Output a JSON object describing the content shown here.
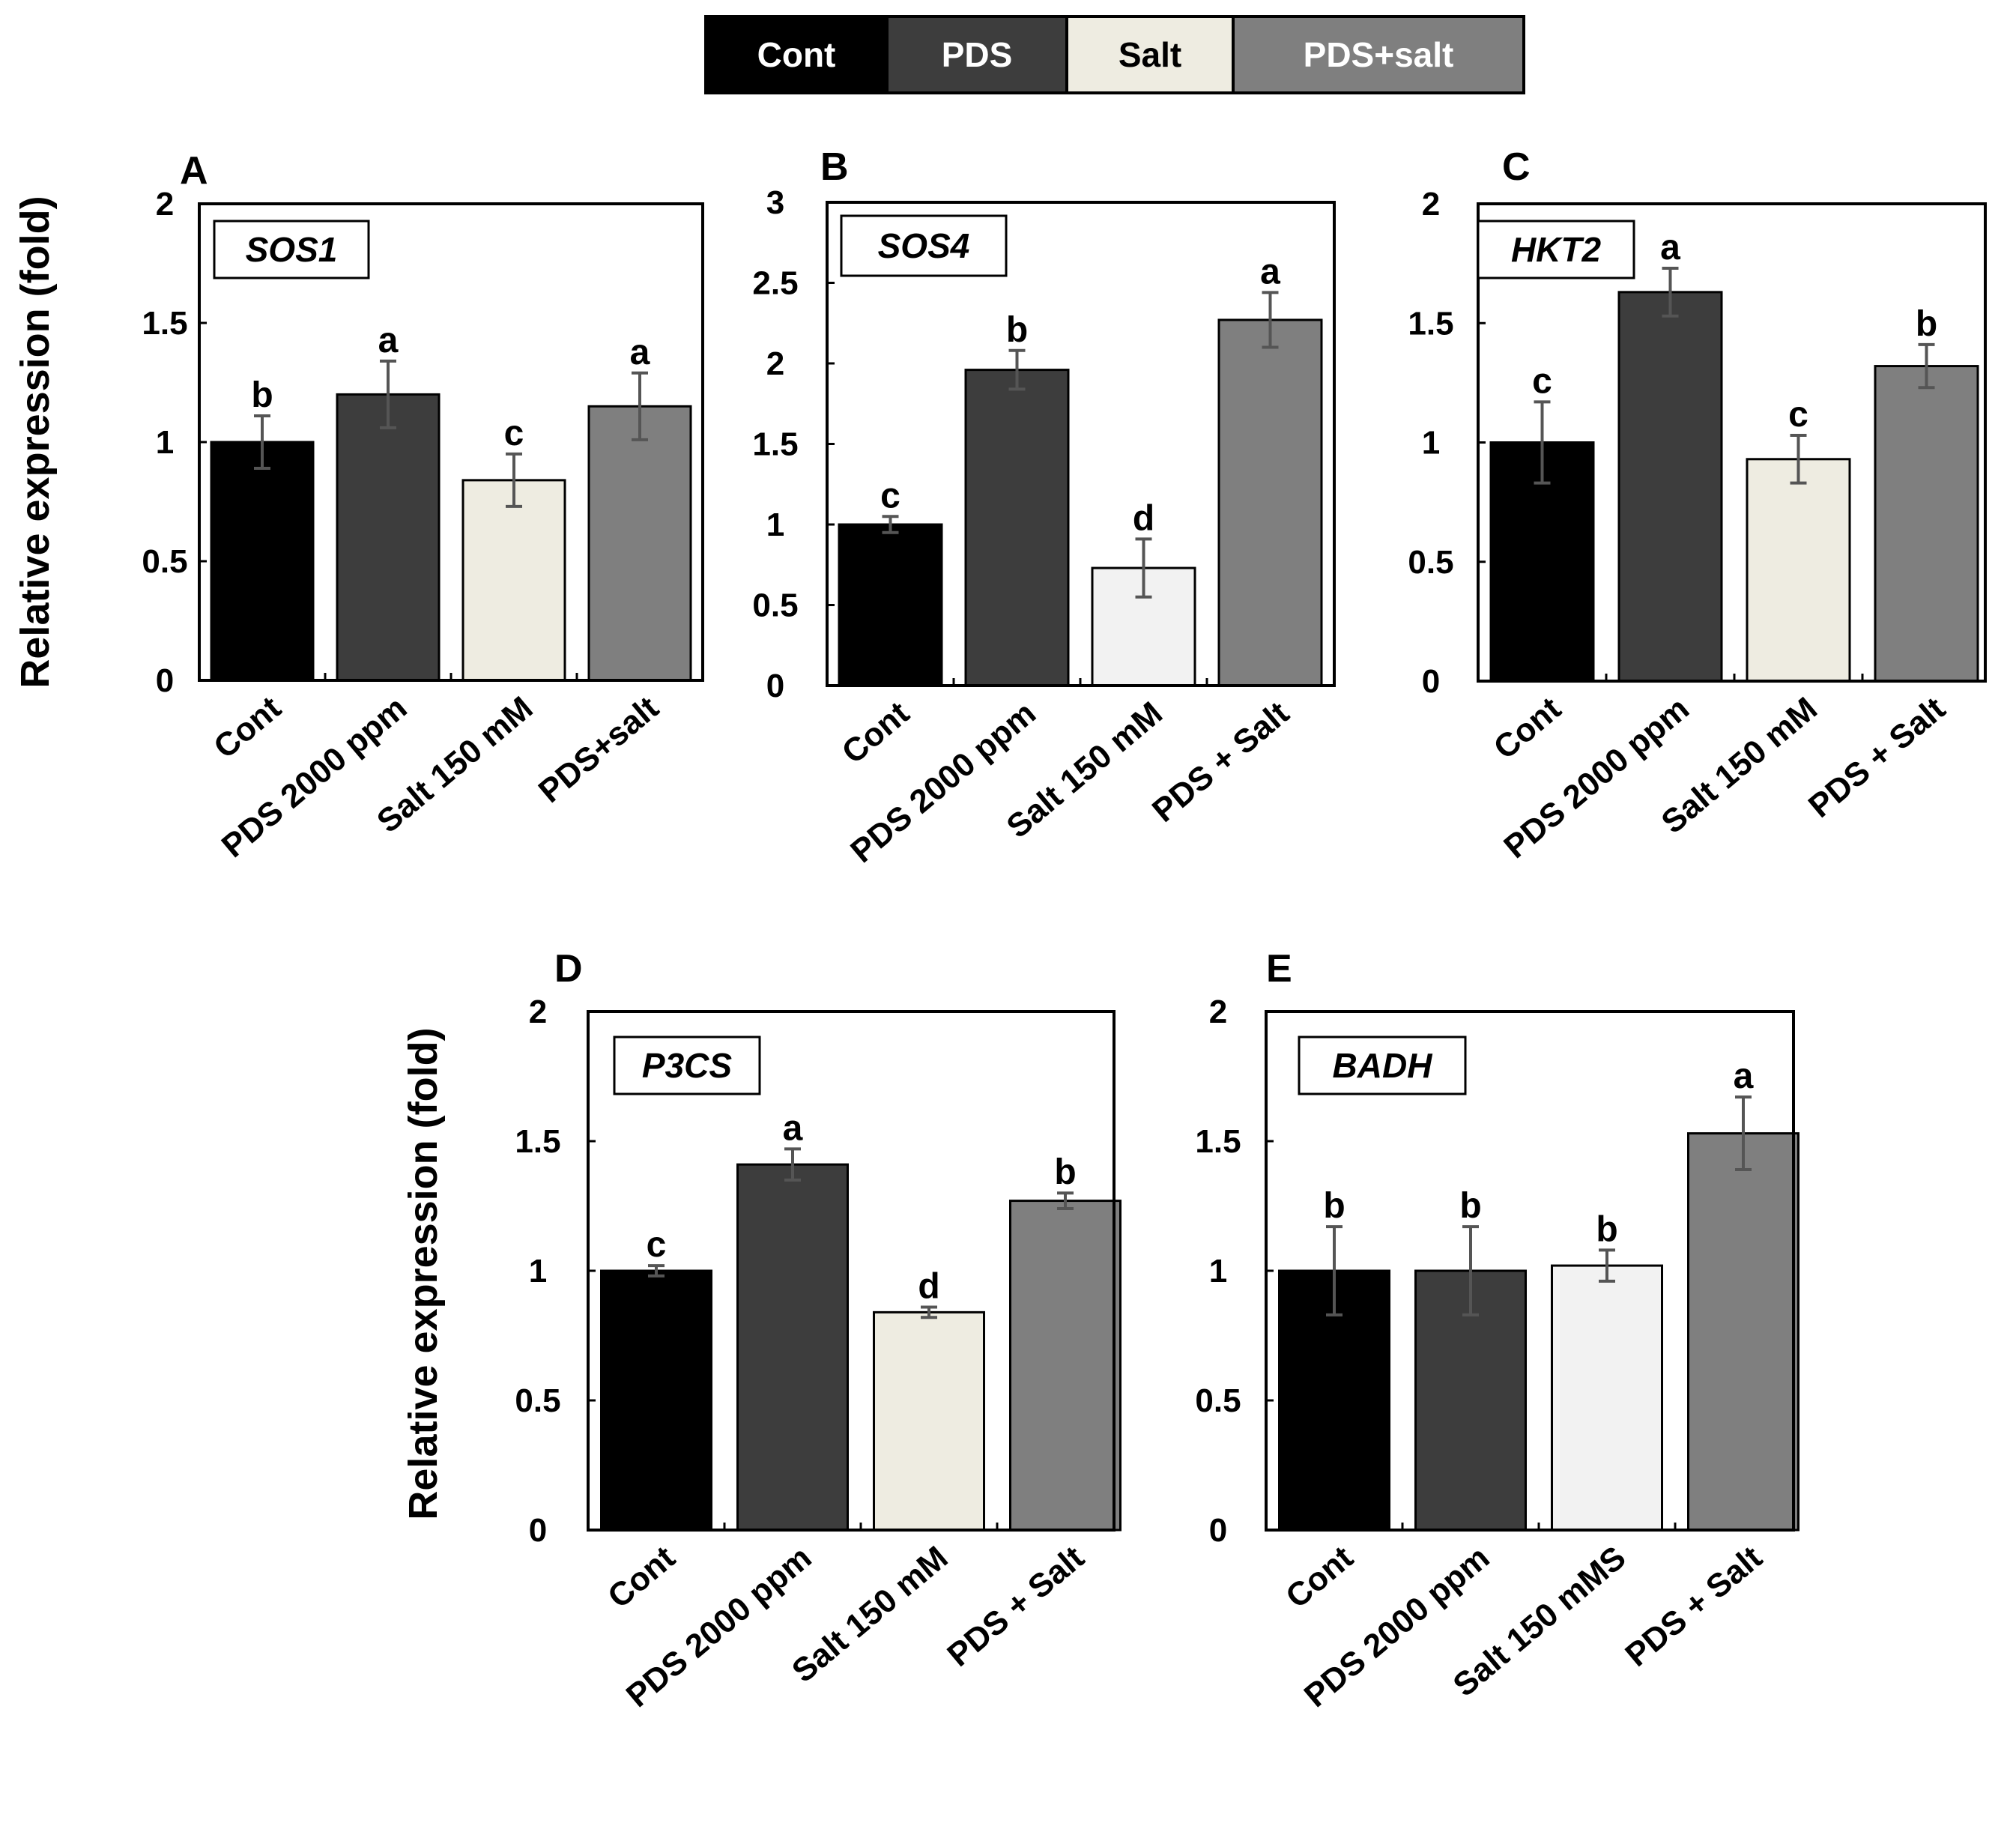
{
  "legend": {
    "items": [
      {
        "label": "Cont",
        "color": "#000000",
        "text_color": "#ffffff"
      },
      {
        "label": "PDS",
        "color": "#3d3d3d",
        "text_color": "#ffffff"
      },
      {
        "label": "Salt",
        "color": "#eeece1",
        "text_color": "#000000"
      },
      {
        "label": "PDS+salt",
        "color": "#7f7f7f",
        "text_color": "#ffffff"
      }
    ]
  },
  "ylabel": "Relative expression (fold)",
  "chart_data": [
    {
      "type": "bar",
      "panel": "A",
      "gene": "SOS1",
      "categories": [
        "Cont",
        "PDS 2000 ppm",
        "Salt 150 mM",
        "PDS+salt"
      ],
      "values": [
        1.0,
        1.2,
        0.84,
        1.15
      ],
      "errors": [
        0.11,
        0.14,
        0.11,
        0.14
      ],
      "significance": [
        "b",
        "a",
        "c",
        "a"
      ],
      "colors": [
        "#000000",
        "#3d3d3d",
        "#eeece1",
        "#7f7f7f"
      ],
      "ylim": [
        0,
        2
      ],
      "yticks": [
        "0",
        "0.5",
        "1",
        "1.5",
        "2"
      ],
      "ylabel": "Relative expression (fold)"
    },
    {
      "type": "bar",
      "panel": "B",
      "gene": "SOS4",
      "categories": [
        "Cont",
        "PDS 2000 ppm",
        "Salt 150 mM",
        "PDS + Salt"
      ],
      "values": [
        1.0,
        1.96,
        0.73,
        2.27
      ],
      "errors": [
        0.05,
        0.12,
        0.18,
        0.17
      ],
      "significance": [
        "c",
        "b",
        "d",
        "a"
      ],
      "colors": [
        "#000000",
        "#3d3d3d",
        "#f2f2f2",
        "#7f7f7f"
      ],
      "ylim": [
        0,
        3
      ],
      "yticks": [
        "0",
        "0.5",
        "1",
        "1.5",
        "2",
        "2.5",
        "3"
      ]
    },
    {
      "type": "bar",
      "panel": "C",
      "gene": "HKT2",
      "categories": [
        "Cont",
        "PDS 2000 ppm",
        "Salt 150 mM",
        "PDS + Salt"
      ],
      "values": [
        1.0,
        1.63,
        0.93,
        1.32
      ],
      "errors": [
        0.17,
        0.1,
        0.1,
        0.09
      ],
      "significance": [
        "c",
        "a",
        "c",
        "b"
      ],
      "colors": [
        "#000000",
        "#3d3d3d",
        "#eeece1",
        "#7f7f7f"
      ],
      "ylim": [
        0,
        2
      ],
      "yticks": [
        "0",
        "0.5",
        "1",
        "1.5",
        "2"
      ]
    },
    {
      "type": "bar",
      "panel": "D",
      "gene": "P3CS",
      "categories": [
        "Cont",
        "PDS 2000 ppm",
        "Salt 150 mM",
        "PDS + Salt"
      ],
      "values": [
        1.0,
        1.41,
        0.84,
        1.27
      ],
      "errors": [
        0.02,
        0.06,
        0.02,
        0.03
      ],
      "significance": [
        "c",
        "a",
        "d",
        "b"
      ],
      "colors": [
        "#000000",
        "#3d3d3d",
        "#eeece1",
        "#7f7f7f"
      ],
      "ylim": [
        0,
        2
      ],
      "yticks": [
        "0",
        "0.5",
        "1",
        "1.5",
        "2"
      ],
      "ylabel": "Relative expression (fold)"
    },
    {
      "type": "bar",
      "panel": "E",
      "gene": "BADH",
      "categories": [
        "Cont",
        "PDS 2000 ppm",
        "Salt 150 mMS",
        "PDS + Salt"
      ],
      "values": [
        1.0,
        1.0,
        1.02,
        1.53
      ],
      "errors": [
        0.17,
        0.17,
        0.06,
        0.14
      ],
      "significance": [
        "b",
        "b",
        "b",
        "a"
      ],
      "colors": [
        "#000000",
        "#3d3d3d",
        "#f2f2f2",
        "#7f7f7f"
      ],
      "ylim": [
        0,
        2
      ],
      "yticks": [
        "0",
        "0.5",
        "1",
        "1.5",
        "2"
      ]
    }
  ]
}
